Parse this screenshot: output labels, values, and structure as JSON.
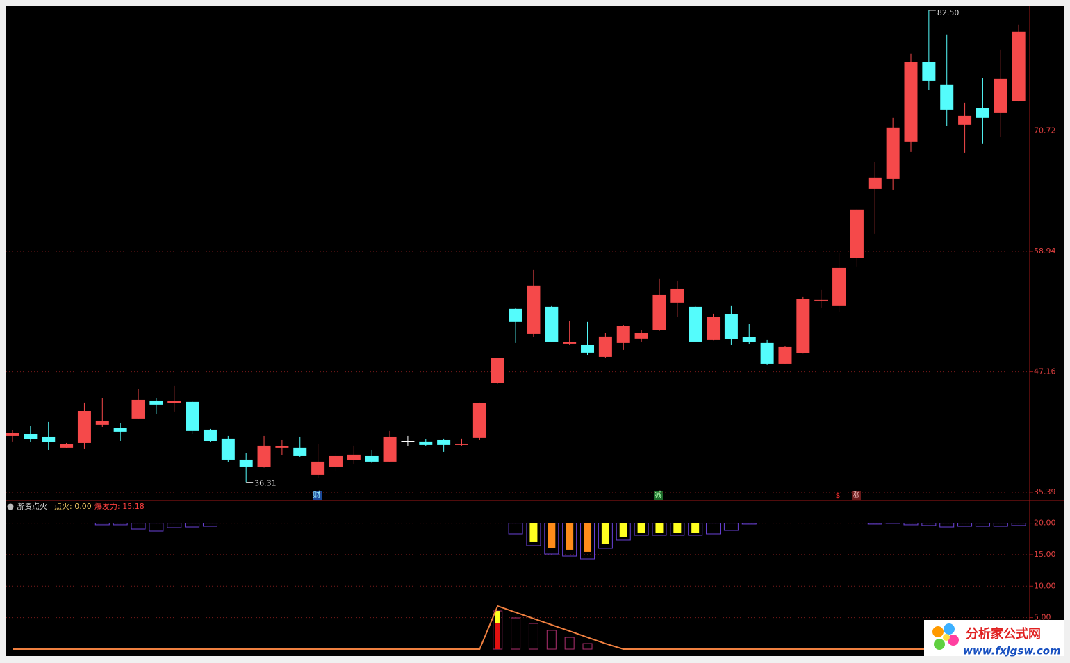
{
  "chart_data": [
    {
      "type": "candlestick",
      "open": [
        40.89,
        41.09,
        40.82,
        39.74,
        40.21,
        41.98,
        41.64,
        42.59,
        44.35,
        44.08,
        44.22,
        41.5,
        40.62,
        38.58,
        37.83,
        39.74,
        39.74,
        37.09,
        37.9,
        38.51,
        38.92,
        38.38,
        40.41,
        40.35,
        40.48,
        40.01,
        40.69,
        46.05,
        53.32,
        50.87,
        53.52,
        49.92,
        49.78,
        48.63,
        49.99,
        50.4,
        51.21,
        53.93,
        53.52,
        50.26,
        52.77,
        50.53,
        49.99,
        47.95,
        48.97,
        54.13,
        53.59,
        58.27,
        65.06,
        66.01,
        69.68,
        77.42,
        75.25,
        71.31,
        72.94,
        72.46,
        73.62
      ],
      "high": [
        41.43,
        41.84,
        42.25,
        40.21,
        44.15,
        44.62,
        42.11,
        45.44,
        44.62,
        45.78,
        44.28,
        41.57,
        40.89,
        39.19,
        40.89,
        40.48,
        40.82,
        40.08,
        39.26,
        39.94,
        39.53,
        41.37,
        40.89,
        40.55,
        40.62,
        40.62,
        44.15,
        48.52,
        53.38,
        57.12,
        53.59,
        52.09,
        52.03,
        50.94,
        51.75,
        51.21,
        56.24,
        56.03,
        53.59,
        52.84,
        53.59,
        51.82,
        50.26,
        49.65,
        54.47,
        55.15,
        58.75,
        63.06,
        67.64,
        71.99,
        78.24,
        82.5,
        80.14,
        73.48,
        75.86,
        78.64,
        81.09
      ],
      "low": [
        40.35,
        40.28,
        39.53,
        39.67,
        39.6,
        41.77,
        40.41,
        42.59,
        42.99,
        43.27,
        41.09,
        40.35,
        38.31,
        36.31,
        37.8,
        38.99,
        38.85,
        36.82,
        37.43,
        38.17,
        38.24,
        38.36,
        39.87,
        39.87,
        39.33,
        39.94,
        40.48,
        46.02,
        49.99,
        50.53,
        50.05,
        49.78,
        48.77,
        48.49,
        49.31,
        50.12,
        51.14,
        52.5,
        50.05,
        50.24,
        49.78,
        49.85,
        47.82,
        47.92,
        48.95,
        53.45,
        52.98,
        57.46,
        60.65,
        64.99,
        68.66,
        74.7,
        71.17,
        68.59,
        69.48,
        70.09,
        73.6
      ],
      "close": [
        41.16,
        40.55,
        40.28,
        40.08,
        43.33,
        42.38,
        41.3,
        44.42,
        43.95,
        44.28,
        41.37,
        40.41,
        38.58,
        37.9,
        39.94,
        39.87,
        38.92,
        38.38,
        38.92,
        39.06,
        38.38,
        40.82,
        40.41,
        40.01,
        40.01,
        40.14,
        44.08,
        48.49,
        52.03,
        55.56,
        50.12,
        50.05,
        49.04,
        50.6,
        51.62,
        50.94,
        54.67,
        55.28,
        50.12,
        52.5,
        50.33,
        50.05,
        47.95,
        49.58,
        54.27,
        54.2,
        57.32,
        63.03,
        66.15,
        71.04,
        77.42,
        75.65,
        72.8,
        72.19,
        71.99,
        75.79,
        80.41
      ],
      "up_color": "#f5494a",
      "down_color": "#54fcfc",
      "doji_color": "#ffffff",
      "ylim": [
        34.64,
        82.84
      ],
      "yticks": [
        35.39,
        47.16,
        58.94,
        70.72
      ],
      "grid": true,
      "high_label": "82.50",
      "low_label": "36.31"
    },
    {
      "type": "indicator",
      "title": "游资点火",
      "readouts": [
        "点火: 0.00",
        "爆发力: 15.18"
      ],
      "ylim": [
        -0.55,
        23.48
      ],
      "yticks": [
        {
          "value": 5,
          "label": "5.00"
        },
        {
          "value": 10,
          "label": "10.00"
        },
        {
          "value": 15,
          "label": "15.00"
        },
        {
          "value": 20,
          "label": "20.00"
        }
      ],
      "grid": true,
      "box_top": 20,
      "boxes": {
        "color": "#6a42d8",
        "values": [
          null,
          null,
          null,
          null,
          null,
          19.74,
          19.74,
          19.07,
          18.74,
          19.29,
          19.4,
          19.51,
          null,
          null,
          null,
          null,
          null,
          null,
          null,
          null,
          null,
          null,
          null,
          null,
          null,
          null,
          null,
          null,
          18.3,
          16.43,
          15.1,
          14.77,
          14.33,
          15.99,
          17.31,
          18.08,
          18.08,
          18.08,
          18.08,
          18.3,
          18.85,
          19.85,
          null,
          null,
          null,
          null,
          null,
          null,
          19.85,
          19.96,
          19.74,
          19.63,
          19.4,
          19.51,
          19.51,
          19.51,
          19.63
        ]
      },
      "fills": [
        {
          "color": "#ffff20",
          "values": [
            null,
            null,
            null,
            null,
            null,
            null,
            null,
            null,
            null,
            null,
            null,
            null,
            null,
            null,
            null,
            null,
            null,
            null,
            null,
            null,
            null,
            null,
            null,
            null,
            null,
            null,
            null,
            null,
            null,
            17.09,
            null,
            null,
            null,
            16.65,
            17.86,
            18.41,
            18.41,
            18.41,
            18.41,
            null,
            null,
            null,
            null,
            null,
            null,
            null,
            null,
            null,
            null,
            null,
            null,
            null,
            null,
            null,
            null,
            null,
            null
          ]
        },
        {
          "color": "#ff8c1a",
          "values": [
            null,
            null,
            null,
            null,
            null,
            null,
            null,
            null,
            null,
            null,
            null,
            null,
            null,
            null,
            null,
            null,
            null,
            null,
            null,
            null,
            null,
            null,
            null,
            null,
            null,
            null,
            null,
            null,
            null,
            null,
            15.99,
            15.77,
            15.44,
            null,
            null,
            null,
            null,
            null,
            null,
            null,
            null,
            null,
            null,
            null,
            null,
            null,
            null,
            null,
            null,
            null,
            null,
            null,
            null,
            null,
            null,
            null,
            null
          ]
        }
      ],
      "bars": {
        "color": "#b03070",
        "values": [
          null,
          null,
          null,
          null,
          null,
          null,
          null,
          null,
          null,
          null,
          null,
          null,
          null,
          null,
          null,
          null,
          null,
          null,
          null,
          null,
          null,
          null,
          null,
          null,
          null,
          null,
          null,
          6.06,
          4.96,
          4.08,
          2.98,
          1.87,
          0.88,
          null,
          null,
          null,
          null,
          null,
          null,
          null,
          null,
          null,
          null,
          null,
          null,
          null,
          null,
          null,
          null,
          null,
          null,
          null,
          null,
          null,
          null,
          null,
          null
        ]
      },
      "fire": [
        {
          "color": "#e01010",
          "values": [
            null,
            null,
            null,
            null,
            null,
            null,
            null,
            null,
            null,
            null,
            null,
            null,
            null,
            null,
            null,
            null,
            null,
            null,
            null,
            null,
            null,
            null,
            null,
            null,
            null,
            null,
            null,
            4.19,
            null,
            null,
            null,
            null,
            null,
            null,
            null,
            null,
            null,
            null,
            null,
            null,
            null,
            null,
            null,
            null,
            null,
            null,
            null,
            null,
            null,
            null,
            null,
            null,
            null,
            null,
            null,
            null,
            null
          ]
        },
        {
          "color": "#ffff20",
          "values": [
            null,
            null,
            null,
            null,
            null,
            null,
            null,
            null,
            null,
            null,
            null,
            null,
            null,
            null,
            null,
            null,
            null,
            null,
            null,
            null,
            null,
            null,
            null,
            null,
            null,
            null,
            null,
            1.87,
            null,
            null,
            null,
            null,
            null,
            null,
            null,
            null,
            null,
            null,
            null,
            null,
            null,
            null,
            null,
            null,
            null,
            null,
            null,
            null,
            null,
            null,
            null,
            null,
            null,
            null,
            null,
            null,
            null
          ]
        }
      ],
      "line": {
        "color": "#f08040",
        "values": [
          0,
          0,
          0,
          0,
          0,
          0,
          0,
          0,
          0,
          0,
          0,
          0,
          0,
          0,
          0,
          0,
          0,
          0,
          0,
          0,
          0,
          0,
          0,
          0,
          0,
          0,
          0,
          6.84,
          5.84,
          4.85,
          3.86,
          2.87,
          1.87,
          0.88,
          0,
          0,
          0,
          0,
          0,
          0,
          0,
          0,
          0,
          0,
          0,
          0,
          0,
          0,
          0,
          0,
          0,
          0,
          0,
          0,
          0,
          0,
          0
        ]
      }
    }
  ],
  "signals": [
    "财",
    "减",
    "$",
    "涨"
  ],
  "watermark": {
    "title": "分析家公式网",
    "url": "www.fxjgsw.com"
  }
}
